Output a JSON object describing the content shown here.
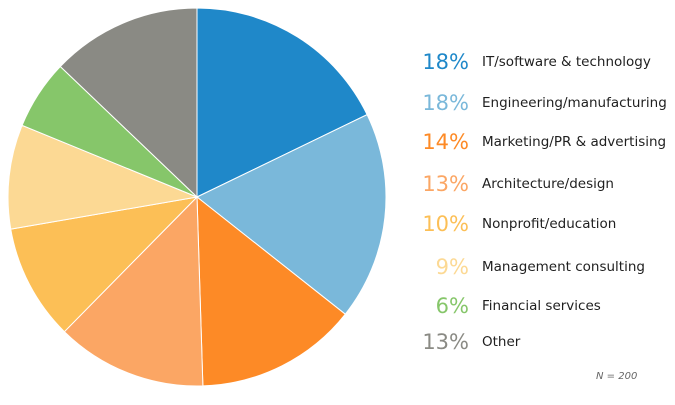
{
  "chart_data": {
    "type": "pie",
    "start_angle": "12 o'clock",
    "direction": "clockwise",
    "categories": [
      "IT/software & technology",
      "Engineering/manufacturing",
      "Marketing/PR & advertising",
      "Architecture/design",
      "Nonprofit/education",
      "Management consulting",
      "Financial services",
      "Other"
    ],
    "percent_labels": [
      "18%",
      "18%",
      "14%",
      "13%",
      "10%",
      "9%",
      "6%",
      "13%"
    ],
    "values": [
      18,
      18,
      14,
      13,
      10,
      9,
      6,
      13
    ],
    "colors": [
      "#1f88c9",
      "#7ab8da",
      "#fd8a26",
      "#fba664",
      "#fcbf56",
      "#fcd994",
      "#86c66a",
      "#8a8a84"
    ],
    "legend_placement": "right",
    "note": "N = 200"
  }
}
